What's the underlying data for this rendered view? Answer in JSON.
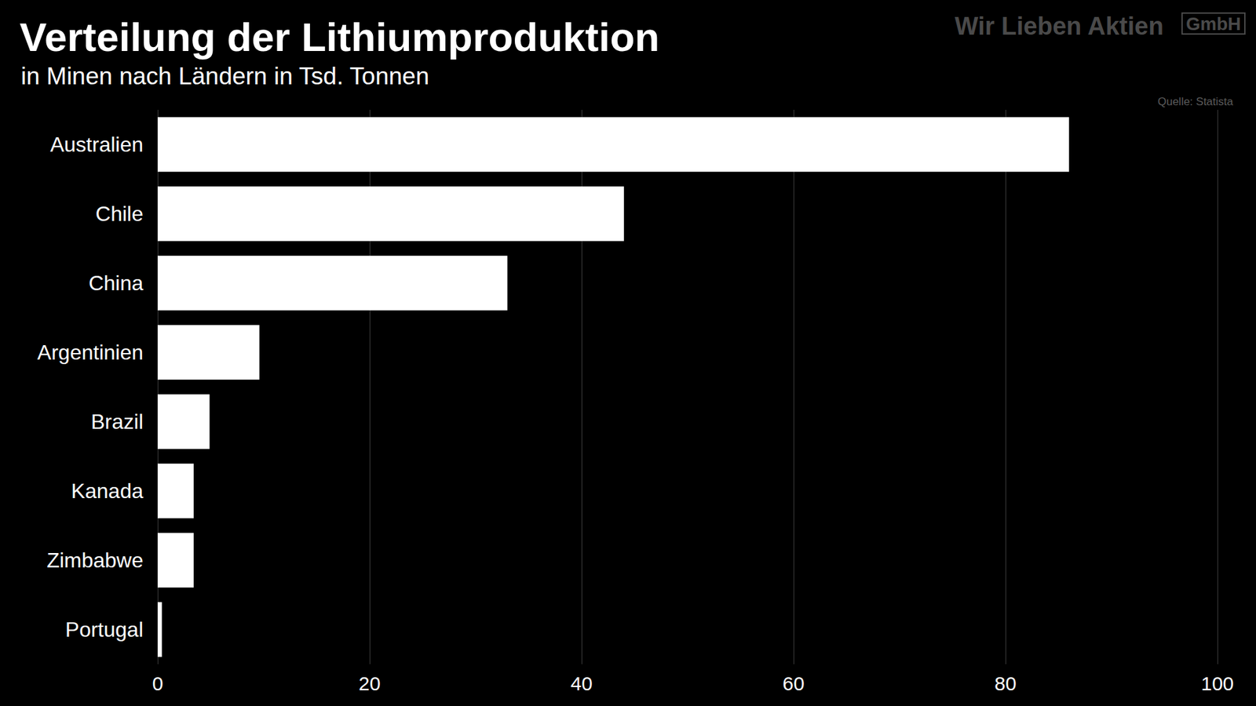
{
  "chart_data": {
    "type": "bar",
    "title": "Verteilung der Lithiumproduktion",
    "subtitle": "in Minen nach Ländern in Tsd. Tonnen",
    "source": "Quelle: Statista",
    "brand": "Wir Lieben Aktien",
    "brand_suffix": "GmbH",
    "orientation": "horizontal",
    "categories": [
      "Australien",
      "Chile",
      "China",
      "Argentinien",
      "Brazil",
      "Kanada",
      "Zimbabwe",
      "Portugal"
    ],
    "values": [
      86,
      44,
      33,
      9.6,
      4.9,
      3.4,
      3.4,
      0.4
    ],
    "color": "#ffffff",
    "xlim": [
      0,
      100
    ],
    "xticks": [
      0,
      20,
      40,
      60,
      80,
      100
    ],
    "grid": true
  }
}
